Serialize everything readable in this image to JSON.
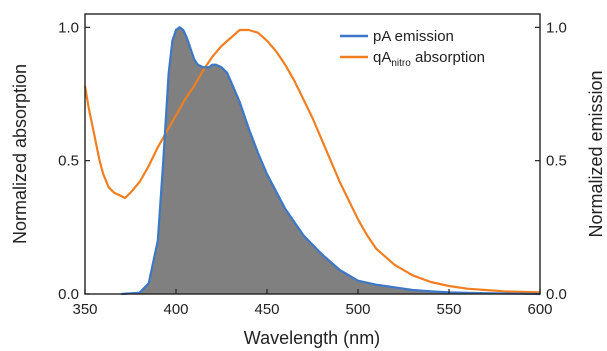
{
  "chart_data": {
    "type": "line",
    "xlabel": "Wavelength (nm)",
    "ylabel_left": "Normalized absorption",
    "ylabel_right": "Normalized emission",
    "xlim": [
      350,
      600
    ],
    "ylim": [
      0,
      1.05
    ],
    "x_ticks": [
      350,
      400,
      450,
      500,
      550,
      600
    ],
    "x_tick_labels": [
      "350",
      "400",
      "450",
      "500",
      "550",
      "600"
    ],
    "y_ticks": [
      0,
      0.5,
      1.0
    ],
    "y_tick_labels": [
      "0.0",
      "0.5",
      "1.0"
    ],
    "legend_position": "top-right",
    "legend": {
      "pA_label": "pA emission",
      "qA_label_main": "qA",
      "qA_label_sub": "nitro",
      "qA_label_rest": " absorption"
    },
    "colors": {
      "pA_emission": "#3d78c6",
      "qA_absorption": "#f07f22",
      "fill": "#808080"
    },
    "series": [
      {
        "name": "pA emission",
        "axis": "right",
        "x": [
          370,
          380,
          385,
          390,
          393,
          396,
          398,
          400,
          402,
          404,
          406,
          408,
          410,
          412,
          415,
          418,
          420,
          422,
          425,
          428,
          430,
          435,
          440,
          445,
          450,
          460,
          470,
          480,
          490,
          500,
          510,
          520,
          530,
          540,
          550,
          560,
          570,
          580,
          590,
          600
        ],
        "y": [
          0.0,
          0.005,
          0.04,
          0.2,
          0.5,
          0.83,
          0.95,
          0.99,
          1.0,
          0.99,
          0.96,
          0.92,
          0.88,
          0.86,
          0.85,
          0.85,
          0.86,
          0.86,
          0.85,
          0.83,
          0.8,
          0.72,
          0.62,
          0.53,
          0.45,
          0.32,
          0.22,
          0.15,
          0.09,
          0.05,
          0.035,
          0.025,
          0.015,
          0.01,
          0.006,
          0.004,
          0.003,
          0.002,
          0.001,
          0.0
        ]
      },
      {
        "name": "qAnitro absorption",
        "axis": "left",
        "x": [
          350,
          352,
          355,
          358,
          360,
          363,
          366,
          369,
          372,
          375,
          380,
          385,
          390,
          395,
          400,
          405,
          410,
          415,
          420,
          425,
          430,
          435,
          440,
          445,
          450,
          455,
          460,
          465,
          470,
          475,
          480,
          485,
          490,
          495,
          500,
          505,
          510,
          520,
          530,
          540,
          550,
          560,
          570,
          580,
          590,
          600
        ],
        "y": [
          0.78,
          0.7,
          0.6,
          0.5,
          0.45,
          0.4,
          0.38,
          0.37,
          0.36,
          0.38,
          0.42,
          0.48,
          0.55,
          0.61,
          0.67,
          0.73,
          0.78,
          0.84,
          0.89,
          0.93,
          0.96,
          0.99,
          0.99,
          0.98,
          0.95,
          0.91,
          0.86,
          0.8,
          0.73,
          0.66,
          0.58,
          0.5,
          0.42,
          0.35,
          0.28,
          0.22,
          0.17,
          0.11,
          0.07,
          0.045,
          0.03,
          0.02,
          0.015,
          0.01,
          0.008,
          0.006
        ]
      }
    ]
  }
}
